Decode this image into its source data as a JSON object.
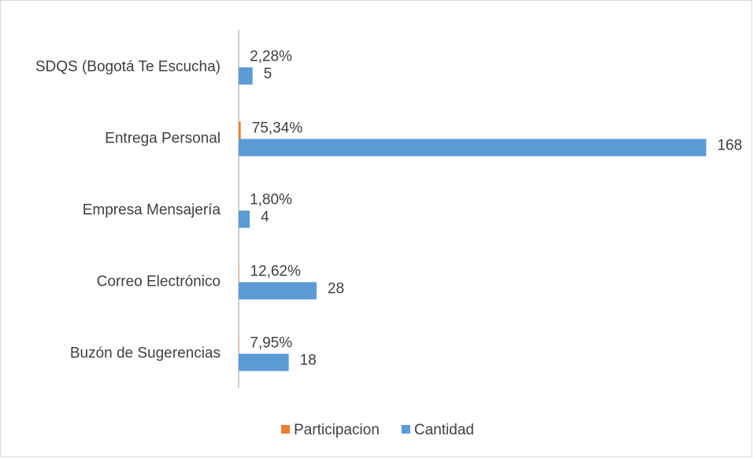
{
  "chart_data": {
    "type": "hbar",
    "categories": [
      "SDQS (Bogotá Te Escucha)",
      "Entrega Personal",
      "Empresa Mensajería",
      "Correo Electrónico",
      "Buzón de Sugerencias"
    ],
    "series": [
      {
        "name": "Participacion",
        "color": "#ed7d31",
        "values": [
          0.0228,
          0.7534,
          0.018,
          0.1262,
          0.0795
        ],
        "value_labels": [
          "2,28%",
          "75,34%",
          "1,80%",
          "12,62%",
          "7,95%"
        ]
      },
      {
        "name": "Cantidad",
        "color": "#5b9bd5",
        "values": [
          5,
          168,
          4,
          28,
          18
        ]
      }
    ],
    "xlim": [
      0,
      180
    ],
    "legend": "bottom"
  }
}
